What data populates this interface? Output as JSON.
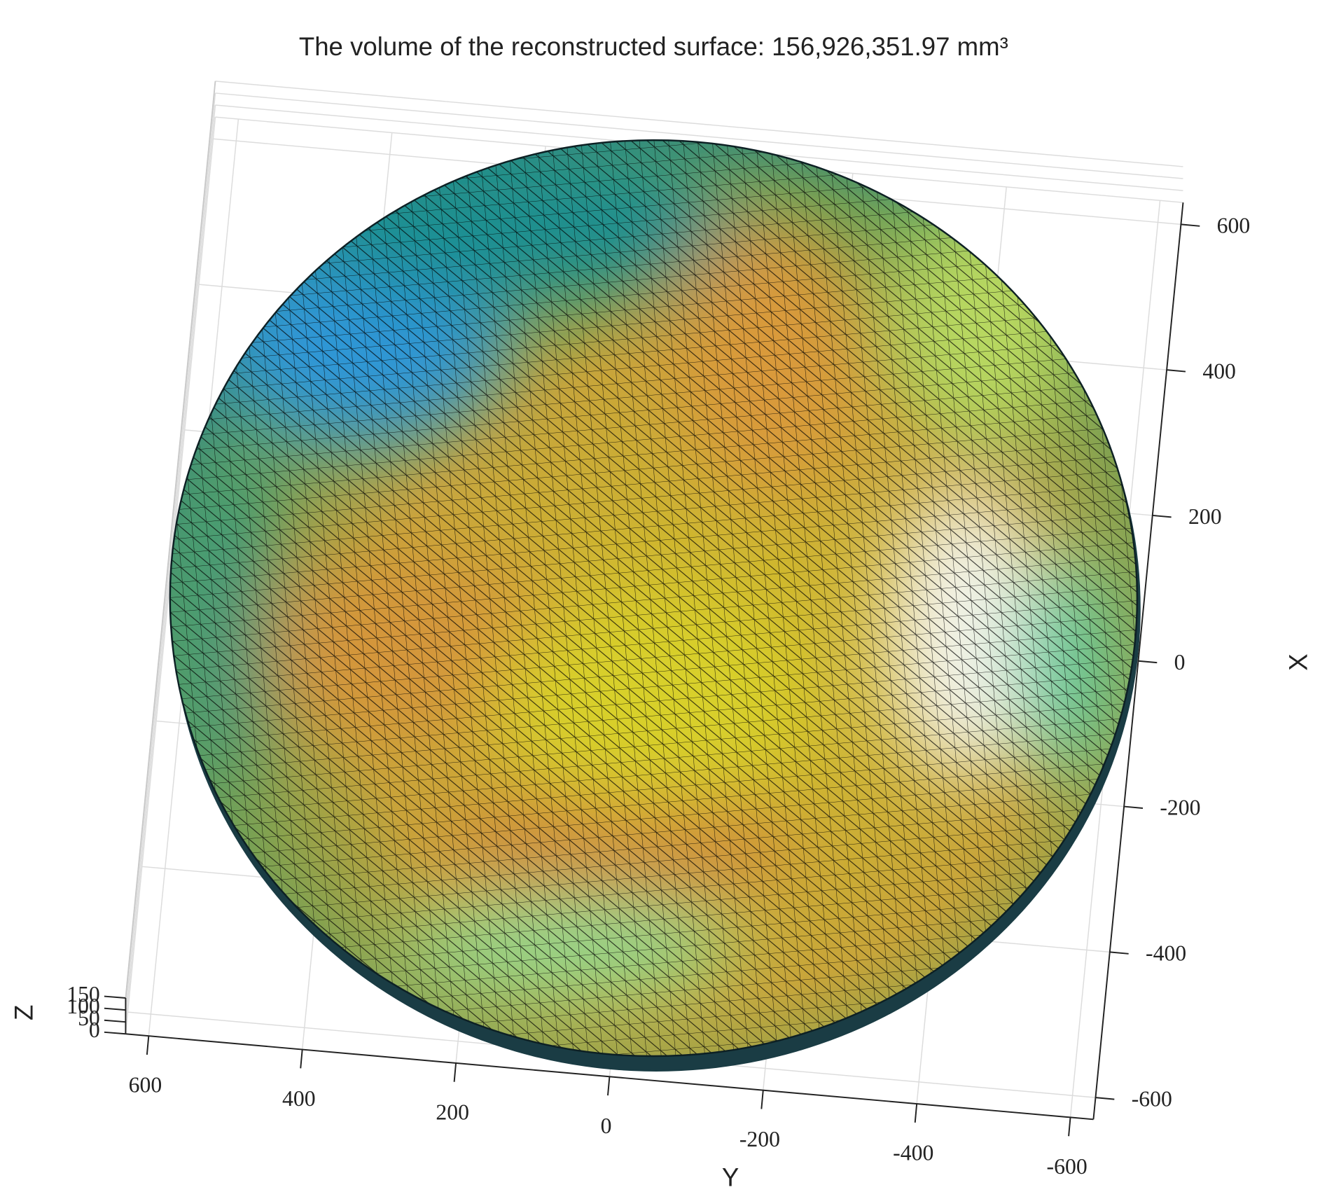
{
  "chart_data": {
    "type": "surface3d",
    "title": "The volume of the reconstructed surface: 156,926,351.97 mm³",
    "xlabel": "X",
    "ylabel": "Y",
    "zlabel": "Z",
    "xlim": [
      -630,
      630
    ],
    "ylim": [
      -630,
      630
    ],
    "zlim": [
      0,
      150
    ],
    "xticks": [
      -600,
      -400,
      -200,
      0,
      200,
      400,
      600
    ],
    "yticks": [
      -600,
      -400,
      -200,
      0,
      200,
      400,
      600
    ],
    "zticks": [
      0,
      50,
      100,
      150
    ],
    "grid": true
  }
}
